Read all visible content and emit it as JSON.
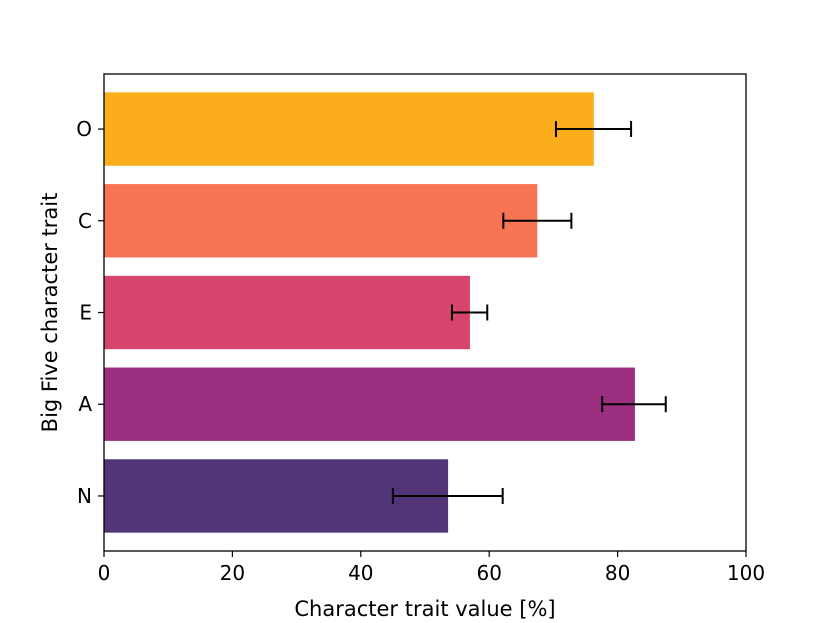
{
  "chart_data": {
    "type": "bar",
    "orientation": "horizontal",
    "title": "",
    "xlabel": "Character trait value [%]",
    "ylabel": "Big Five character trait",
    "xlim": [
      0,
      100
    ],
    "xticks": [
      0,
      20,
      40,
      60,
      80,
      100
    ],
    "categories": [
      "O",
      "C",
      "E",
      "A",
      "N"
    ],
    "values": [
      76.3,
      67.5,
      57.0,
      82.7,
      53.6
    ],
    "error_low": [
      70.4,
      62.2,
      54.2,
      77.6,
      45.0
    ],
    "error_high": [
      82.1,
      72.8,
      59.7,
      87.5,
      62.1
    ],
    "colors": [
      "#fcad1c",
      "#f87554",
      "#d7456c",
      "#9c2e7f",
      "#523479"
    ],
    "grid": false
  }
}
